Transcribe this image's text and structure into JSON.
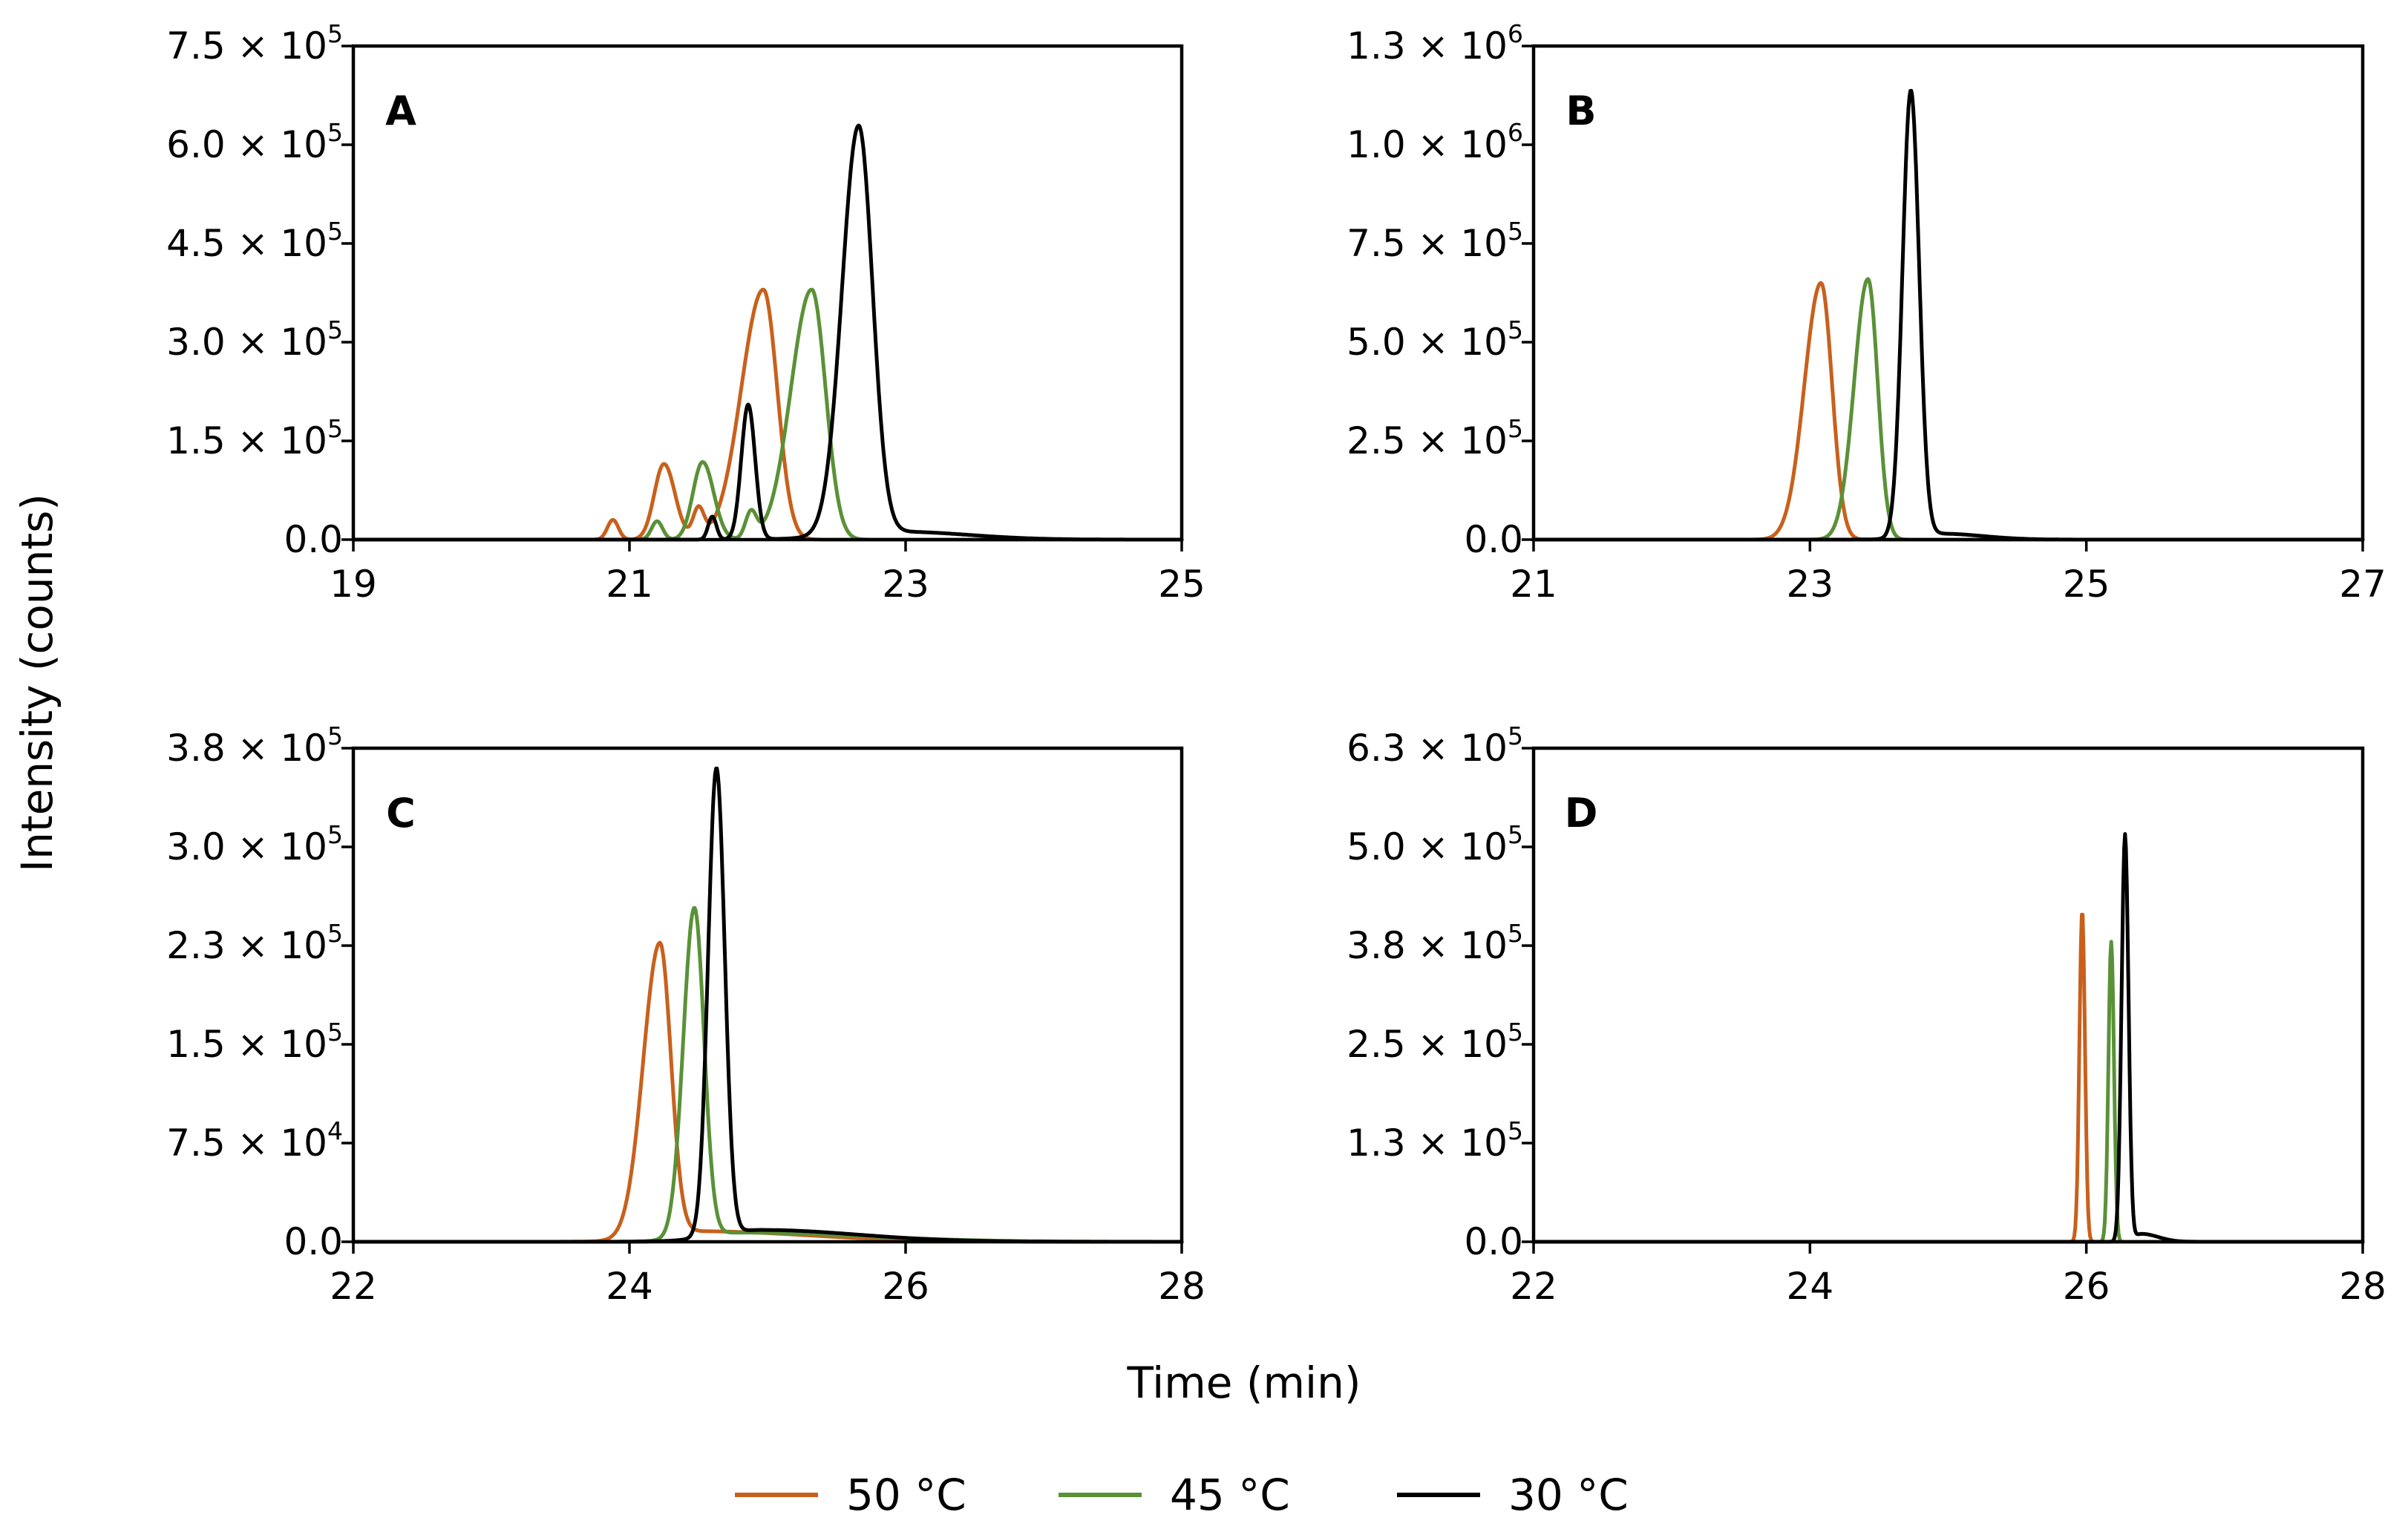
{
  "chart_data": {
    "type": "line",
    "ylabel": "Intensity (counts)",
    "xlabel": "Time (min)",
    "legend": {
      "position": "bottom-center",
      "items": [
        {
          "name": "50 °C",
          "color": "#C8601C"
        },
        {
          "name": "45 °C",
          "color": "#5A9137"
        },
        {
          "name": "30 °C",
          "color": "#000000"
        }
      ]
    },
    "panels": [
      {
        "label": "A",
        "xlim": [
          19,
          25
        ],
        "xticks": [
          19,
          21,
          23,
          25
        ],
        "ylim": [
          0,
          750000
        ],
        "yticks": [
          {
            "value": 0,
            "mantissa": "0.0",
            "exp": ""
          },
          {
            "value": 150000,
            "mantissa": "1.5",
            "exp": "5"
          },
          {
            "value": 300000,
            "mantissa": "3.0",
            "exp": "5"
          },
          {
            "value": 450000,
            "mantissa": "4.5",
            "exp": "5"
          },
          {
            "value": 600000,
            "mantissa": "6.0",
            "exp": "5"
          },
          {
            "value": 750000,
            "mantissa": "7.5",
            "exp": "5"
          }
        ],
        "series": [
          {
            "name": "50 °C",
            "color": "#C8601C",
            "peaks": [
              [
                20.88,
                30000,
                0.04,
                0.04
              ],
              [
                21.25,
                115000,
                0.07,
                0.08
              ],
              [
                21.5,
                45000,
                0.04,
                0.04
              ],
              [
                21.97,
                380000,
                0.16,
                0.1
              ]
            ]
          },
          {
            "name": "45 °C",
            "color": "#5A9137",
            "peaks": [
              [
                21.2,
                28000,
                0.04,
                0.04
              ],
              [
                21.53,
                118000,
                0.07,
                0.08
              ],
              [
                21.88,
                40000,
                0.04,
                0.04
              ],
              [
                22.32,
                380000,
                0.15,
                0.1
              ]
            ]
          },
          {
            "name": "30 °C",
            "color": "#000000",
            "peaks": [
              [
                21.6,
                35000,
                0.03,
                0.03
              ],
              [
                21.86,
                205000,
                0.05,
                0.05
              ],
              [
                22.66,
                620000,
                0.12,
                0.1
              ],
              [
                22.95,
                12000,
                0.4,
                0.5
              ]
            ]
          }
        ]
      },
      {
        "label": "B",
        "xlim": [
          21,
          27
        ],
        "xticks": [
          21,
          23,
          25,
          27
        ],
        "ylim": [
          0,
          1250000
        ],
        "yticks": [
          {
            "value": 0,
            "mantissa": "0.0",
            "exp": ""
          },
          {
            "value": 250000,
            "mantissa": "2.5",
            "exp": "5"
          },
          {
            "value": 500000,
            "mantissa": "5.0",
            "exp": "5"
          },
          {
            "value": 750000,
            "mantissa": "7.5",
            "exp": "5"
          },
          {
            "value": 1000000,
            "mantissa": "1.0",
            "exp": "6"
          },
          {
            "value": 1250000,
            "mantissa": "1.3",
            "exp": "6"
          }
        ],
        "series": [
          {
            "name": "50 °C",
            "color": "#C8601C",
            "peaks": [
              [
                23.08,
                650000,
                0.12,
                0.08
              ]
            ]
          },
          {
            "name": "45 °C",
            "color": "#5A9137",
            "peaks": [
              [
                23.42,
                660000,
                0.1,
                0.07
              ]
            ]
          },
          {
            "name": "30 °C",
            "color": "#000000",
            "peaks": [
              [
                23.73,
                1130000,
                0.06,
                0.06
              ],
              [
                23.95,
                15000,
                0.2,
                0.3
              ]
            ]
          }
        ]
      },
      {
        "label": "C",
        "xlim": [
          22,
          28
        ],
        "xticks": [
          22,
          24,
          26,
          28
        ],
        "ylim": [
          0,
          375000
        ],
        "yticks": [
          {
            "value": 0,
            "mantissa": "0.0",
            "exp": ""
          },
          {
            "value": 75000,
            "mantissa": "7.5",
            "exp": "4"
          },
          {
            "value": 150000,
            "mantissa": "1.5",
            "exp": "5"
          },
          {
            "value": 225000,
            "mantissa": "2.3",
            "exp": "5"
          },
          {
            "value": 300000,
            "mantissa": "3.0",
            "exp": "5"
          },
          {
            "value": 375000,
            "mantissa": "3.8",
            "exp": "5"
          }
        ],
        "series": [
          {
            "name": "50 °C",
            "color": "#C8601C",
            "peaks": [
              [
                24.22,
                222000,
                0.12,
                0.08
              ],
              [
                24.5,
                8000,
                0.3,
                0.8
              ]
            ]
          },
          {
            "name": "45 °C",
            "color": "#5A9137",
            "peaks": [
              [
                24.47,
                250000,
                0.08,
                0.07
              ],
              [
                24.8,
                7000,
                0.3,
                0.9
              ]
            ]
          },
          {
            "name": "30 °C",
            "color": "#000000",
            "peaks": [
              [
                24.63,
                355000,
                0.06,
                0.06
              ],
              [
                24.95,
                9000,
                0.3,
                0.7
              ]
            ]
          }
        ]
      },
      {
        "label": "D",
        "xlim": [
          22,
          28
        ],
        "xticks": [
          22,
          24,
          26,
          28
        ],
        "ylim": [
          0,
          625000
        ],
        "yticks": [
          {
            "value": 0,
            "mantissa": "0.0",
            "exp": ""
          },
          {
            "value": 125000,
            "mantissa": "1.3",
            "exp": "5"
          },
          {
            "value": 250000,
            "mantissa": "2.5",
            "exp": "5"
          },
          {
            "value": 375000,
            "mantissa": "3.8",
            "exp": "5"
          },
          {
            "value": 500000,
            "mantissa": "5.0",
            "exp": "5"
          },
          {
            "value": 625000,
            "mantissa": "6.3",
            "exp": "5"
          }
        ],
        "series": [
          {
            "name": "50 °C",
            "color": "#C8601C",
            "peaks": [
              [
                25.97,
                420000,
                0.02,
                0.02
              ]
            ]
          },
          {
            "name": "45 °C",
            "color": "#5A9137",
            "peaks": [
              [
                26.18,
                380000,
                0.02,
                0.02
              ]
            ]
          },
          {
            "name": "30 °C",
            "color": "#000000",
            "peaks": [
              [
                26.28,
                515000,
                0.025,
                0.025
              ],
              [
                26.4,
                10000,
                0.06,
                0.12
              ]
            ]
          }
        ]
      }
    ]
  }
}
